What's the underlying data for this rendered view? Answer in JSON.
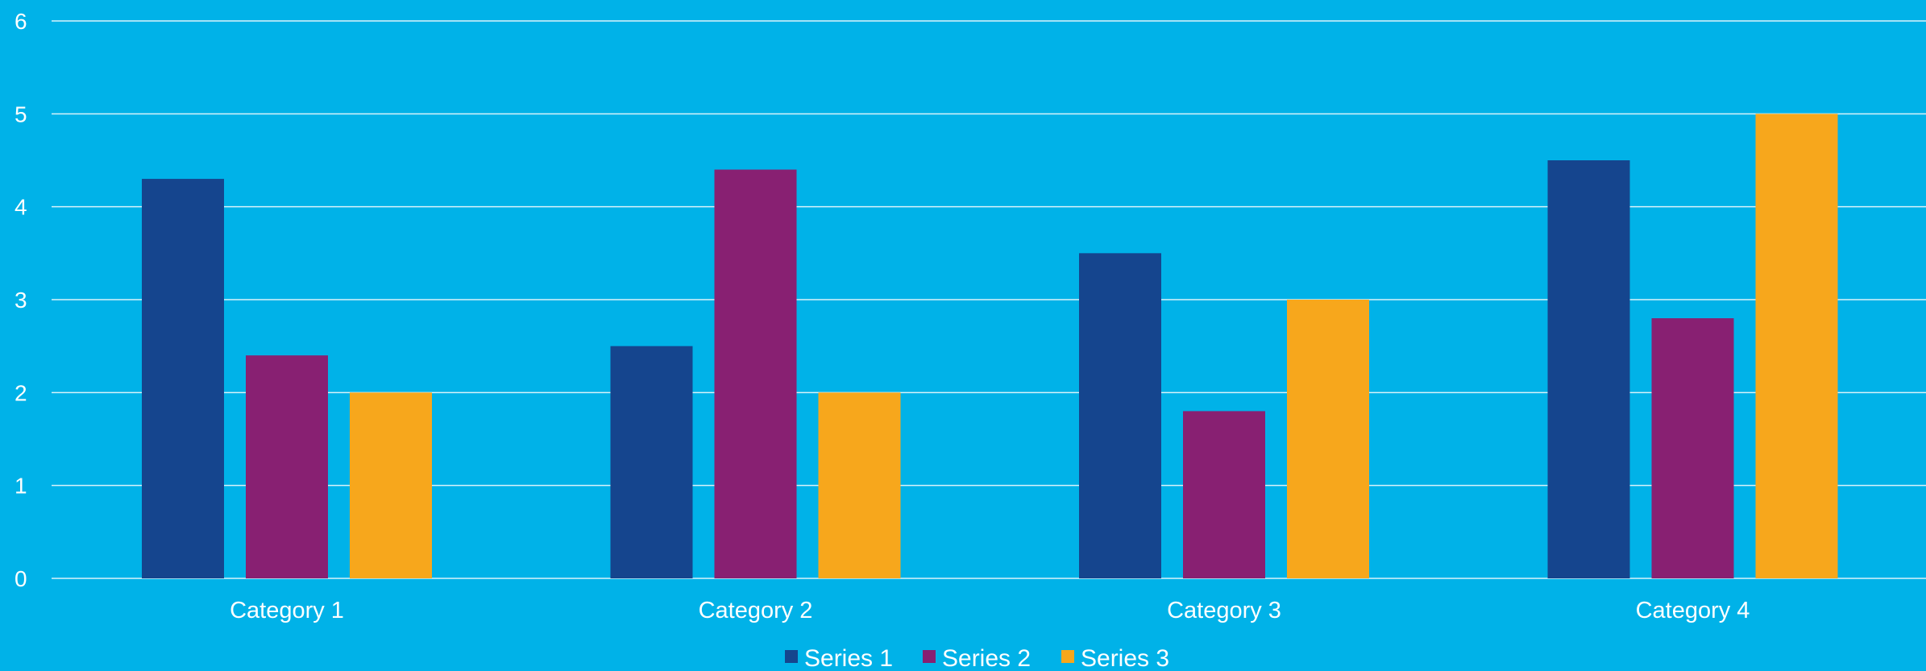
{
  "chart_data": {
    "type": "bar",
    "categories": [
      "Category 1",
      "Category 2",
      "Category 3",
      "Category 4"
    ],
    "series": [
      {
        "name": "Series 1",
        "values": [
          4.3,
          2.5,
          3.5,
          4.5
        ],
        "color": "#15458E"
      },
      {
        "name": "Series 2",
        "values": [
          2.4,
          4.4,
          1.8,
          2.8
        ],
        "color": "#882072"
      },
      {
        "name": "Series 3",
        "values": [
          2,
          2,
          3,
          5
        ],
        "color": "#F7A71C"
      }
    ],
    "ylim": [
      0,
      6
    ],
    "yticks": [
      "0",
      "1",
      "2",
      "3",
      "4",
      "5",
      "6"
    ],
    "grid": true,
    "legend": "bottom",
    "background": "#00B2E8"
  }
}
